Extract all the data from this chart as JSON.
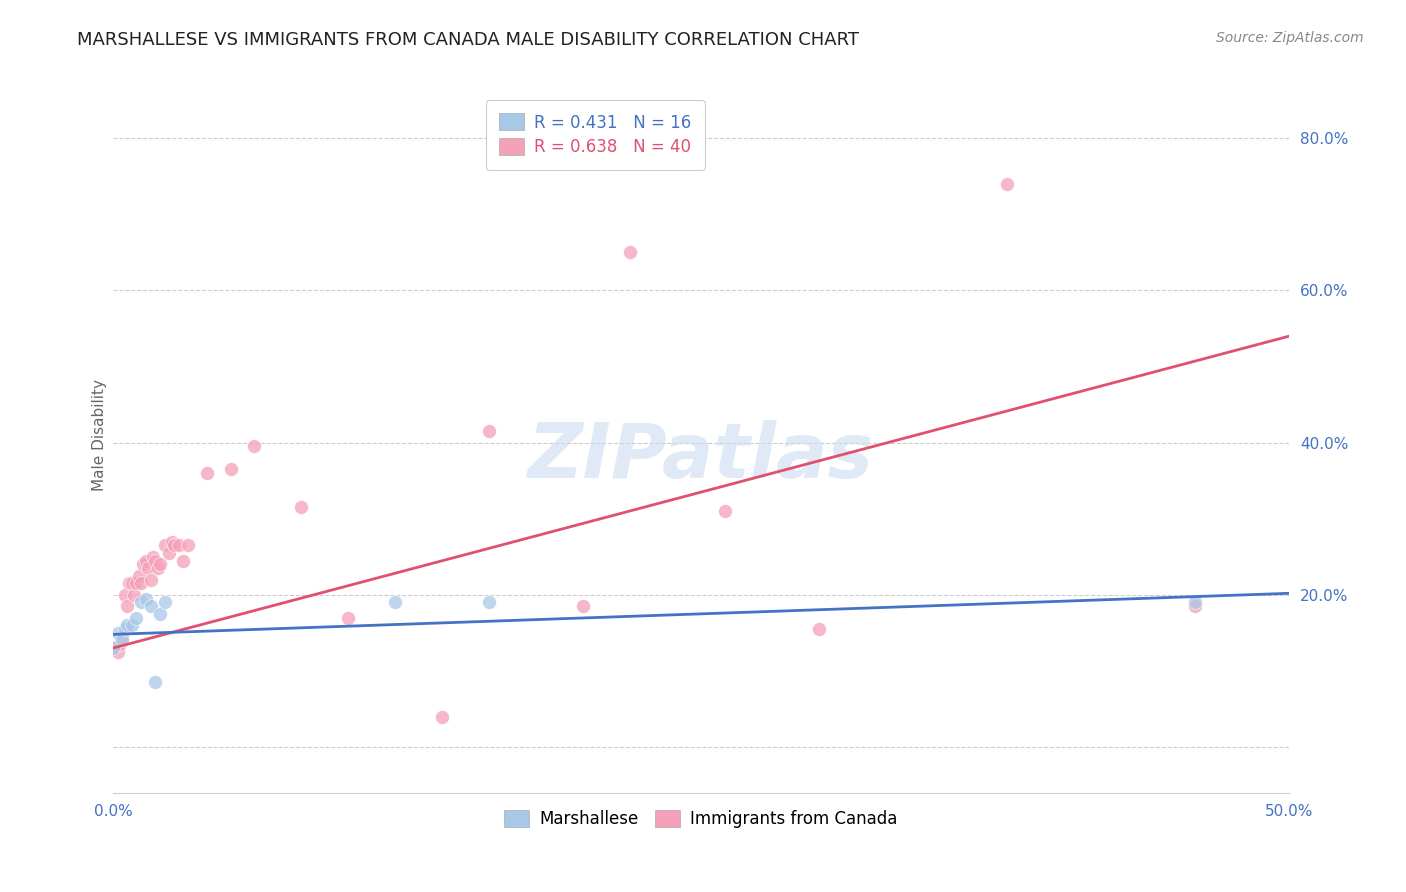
{
  "title": "MARSHALLESE VS IMMIGRANTS FROM CANADA MALE DISABILITY CORRELATION CHART",
  "source": "Source: ZipAtlas.com",
  "ylabel": "Male Disability",
  "xlim": [
    0.0,
    0.5
  ],
  "ylim": [
    -0.06,
    0.88
  ],
  "yticks": [
    0.0,
    0.2,
    0.4,
    0.6,
    0.8
  ],
  "ytick_labels": [
    "",
    "20.0%",
    "40.0%",
    "60.0%",
    "80.0%"
  ],
  "xticks": [
    0.0,
    0.1,
    0.2,
    0.3,
    0.4,
    0.5
  ],
  "xtick_labels": [
    "0.0%",
    "",
    "",
    "",
    "",
    "50.0%"
  ],
  "background_color": "#ffffff",
  "watermark_text": "ZIPatlas",
  "series": [
    {
      "name": "Marshallese",
      "R": 0.431,
      "N": 16,
      "color_scatter": "#a8c8e8",
      "color_line": "#4472c4",
      "x": [
        0.0,
        0.002,
        0.004,
        0.005,
        0.006,
        0.008,
        0.01,
        0.012,
        0.014,
        0.016,
        0.018,
        0.02,
        0.022,
        0.12,
        0.16,
        0.46
      ],
      "y": [
        0.13,
        0.15,
        0.14,
        0.155,
        0.16,
        0.16,
        0.17,
        0.19,
        0.195,
        0.185,
        0.085,
        0.175,
        0.19,
        0.19,
        0.19,
        0.19
      ],
      "trendline_x": [
        0.0,
        0.5
      ],
      "trendline_y": [
        0.148,
        0.202
      ]
    },
    {
      "name": "Immigrants from Canada",
      "R": 0.638,
      "N": 40,
      "color_scatter": "#f4a0b8",
      "color_line": "#e05070",
      "x": [
        0.0,
        0.002,
        0.003,
        0.004,
        0.005,
        0.006,
        0.007,
        0.008,
        0.009,
        0.01,
        0.011,
        0.012,
        0.013,
        0.014,
        0.015,
        0.016,
        0.017,
        0.018,
        0.019,
        0.02,
        0.022,
        0.024,
        0.025,
        0.026,
        0.028,
        0.03,
        0.032,
        0.04,
        0.05,
        0.06,
        0.08,
        0.1,
        0.14,
        0.16,
        0.2,
        0.22,
        0.26,
        0.3,
        0.38,
        0.46
      ],
      "y": [
        0.13,
        0.125,
        0.135,
        0.145,
        0.2,
        0.185,
        0.215,
        0.215,
        0.2,
        0.215,
        0.225,
        0.215,
        0.24,
        0.245,
        0.235,
        0.22,
        0.25,
        0.245,
        0.235,
        0.24,
        0.265,
        0.255,
        0.27,
        0.265,
        0.265,
        0.245,
        0.265,
        0.36,
        0.365,
        0.395,
        0.315,
        0.17,
        0.04,
        0.415,
        0.185,
        0.65,
        0.31,
        0.155,
        0.74,
        0.185
      ],
      "trendline_x": [
        0.0,
        0.5
      ],
      "trendline_y": [
        0.13,
        0.54
      ]
    }
  ],
  "title_fontsize": 13,
  "source_fontsize": 10,
  "axis_label_fontsize": 11,
  "tick_fontsize": 11,
  "legend_fontsize": 12,
  "watermark_fontsize": 55,
  "watermark_color": "#ccddf0",
  "watermark_alpha": 0.6,
  "scatter_size": 100,
  "scatter_alpha": 0.75,
  "line_width": 2.0,
  "tick_color": "#4472c4",
  "ylabel_color": "#666666",
  "title_color": "#222222",
  "source_color": "#888888",
  "grid_color": "#cccccc",
  "grid_linestyle": "--",
  "grid_linewidth": 0.8,
  "spine_color": "#cccccc"
}
